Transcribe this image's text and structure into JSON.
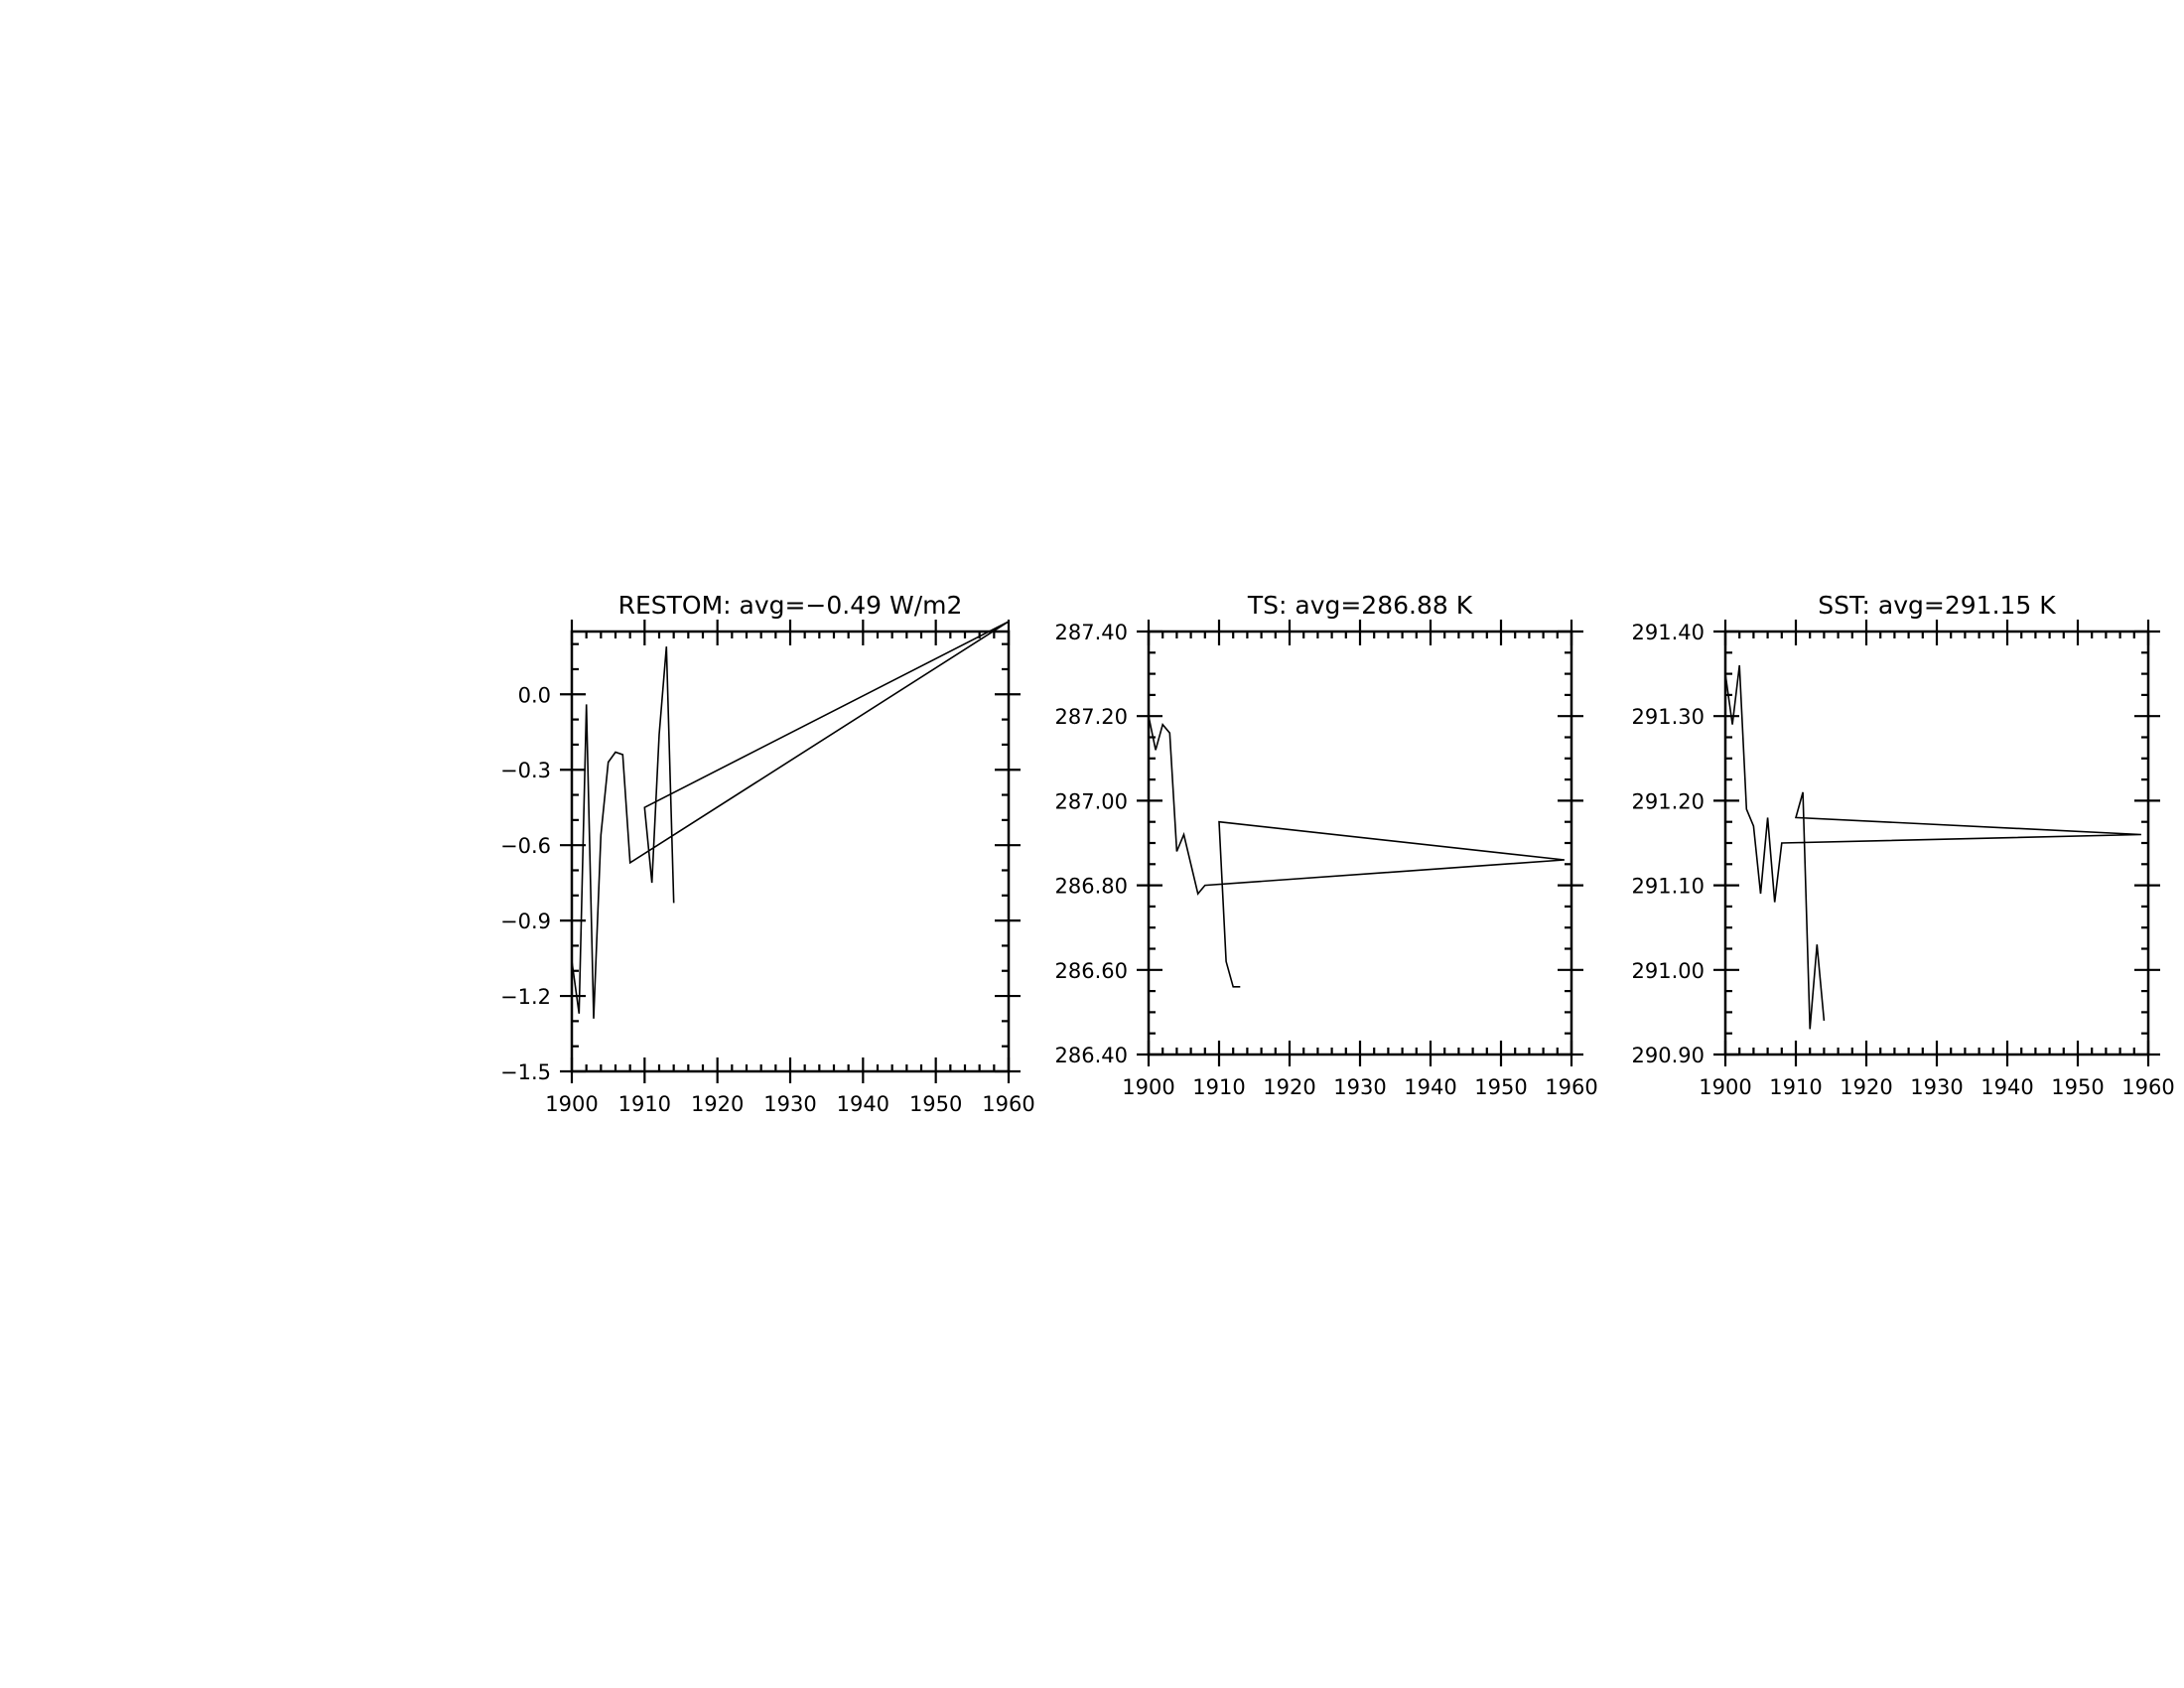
{
  "chart_data": [
    {
      "type": "line",
      "title": "RESTOM: avg=−0.49 W/m2",
      "xlabel": "",
      "ylabel": "",
      "xlim": [
        1900,
        1960
      ],
      "ylim": [
        -1.5,
        0.25
      ],
      "xticks": [
        1900,
        1910,
        1920,
        1930,
        1940,
        1950,
        1960
      ],
      "xtick_labels": [
        "1900",
        "1910",
        "1920",
        "1930",
        "1940",
        "1950",
        "1960"
      ],
      "yticks": [
        -1.5,
        -1.2,
        -0.9,
        -0.6,
        -0.3,
        0.0
      ],
      "ytick_labels": [
        "−1.5",
        "−1.2",
        "−0.9",
        "−0.6",
        "−0.3",
        "0.0"
      ],
      "y_minor_step": 0.1,
      "series": [
        {
          "name": "RESTOM",
          "x": [
            1900,
            1901,
            1902,
            1903,
            1904,
            1905,
            1906,
            1907,
            1908,
            1960,
            1910,
            1911,
            1912,
            1913,
            1914
          ],
          "y": [
            -1.06,
            -1.27,
            -0.04,
            -1.29,
            -0.56,
            -0.27,
            -0.23,
            -0.24,
            -0.67,
            0.29,
            -0.45,
            -0.75,
            -0.16,
            0.19,
            -0.83
          ]
        }
      ]
    },
    {
      "type": "line",
      "title": "TS: avg=286.88 K",
      "xlabel": "",
      "ylabel": "",
      "xlim": [
        1900,
        1960
      ],
      "ylim": [
        286.4,
        287.4
      ],
      "xticks": [
        1900,
        1910,
        1920,
        1930,
        1940,
        1950,
        1960
      ],
      "xtick_labels": [
        "1900",
        "1910",
        "1920",
        "1930",
        "1940",
        "1950",
        "1960"
      ],
      "yticks": [
        286.4,
        286.6,
        286.8,
        287.0,
        287.2,
        287.4
      ],
      "ytick_labels": [
        "286.40",
        "286.60",
        "286.80",
        "287.00",
        "287.20",
        "287.40"
      ],
      "y_minor_step": 0.05,
      "series": [
        {
          "name": "TS",
          "x": [
            1900,
            1901,
            1902,
            1903,
            1904,
            1905,
            1906,
            1907,
            1908,
            1959,
            1910,
            1911,
            1912,
            1913
          ],
          "y": [
            287.2,
            287.12,
            287.18,
            287.16,
            286.88,
            286.92,
            286.85,
            286.78,
            286.8,
            286.86,
            286.95,
            286.62,
            286.56,
            286.56
          ]
        }
      ]
    },
    {
      "type": "line",
      "title": "SST: avg=291.15 K",
      "xlabel": "",
      "ylabel": "",
      "xlim": [
        1900,
        1960
      ],
      "ylim": [
        290.9,
        291.4
      ],
      "xticks": [
        1900,
        1910,
        1920,
        1930,
        1940,
        1950,
        1960
      ],
      "xtick_labels": [
        "1900",
        "1910",
        "1920",
        "1930",
        "1940",
        "1950",
        "1960"
      ],
      "yticks": [
        290.9,
        291.0,
        291.1,
        291.2,
        291.3,
        291.4
      ],
      "ytick_labels": [
        "290.90",
        "291.00",
        "291.10",
        "291.20",
        "291.30",
        "291.40"
      ],
      "y_minor_step": 0.025,
      "series": [
        {
          "name": "SST",
          "x": [
            1900,
            1901,
            1902,
            1903,
            1904,
            1905,
            1906,
            1907,
            1908,
            1959,
            1910,
            1911,
            1912,
            1913,
            1914
          ],
          "y": [
            291.35,
            291.29,
            291.36,
            291.19,
            291.17,
            291.09,
            291.18,
            291.08,
            291.15,
            291.16,
            291.18,
            291.21,
            290.93,
            291.03,
            290.94
          ]
        }
      ]
    }
  ]
}
